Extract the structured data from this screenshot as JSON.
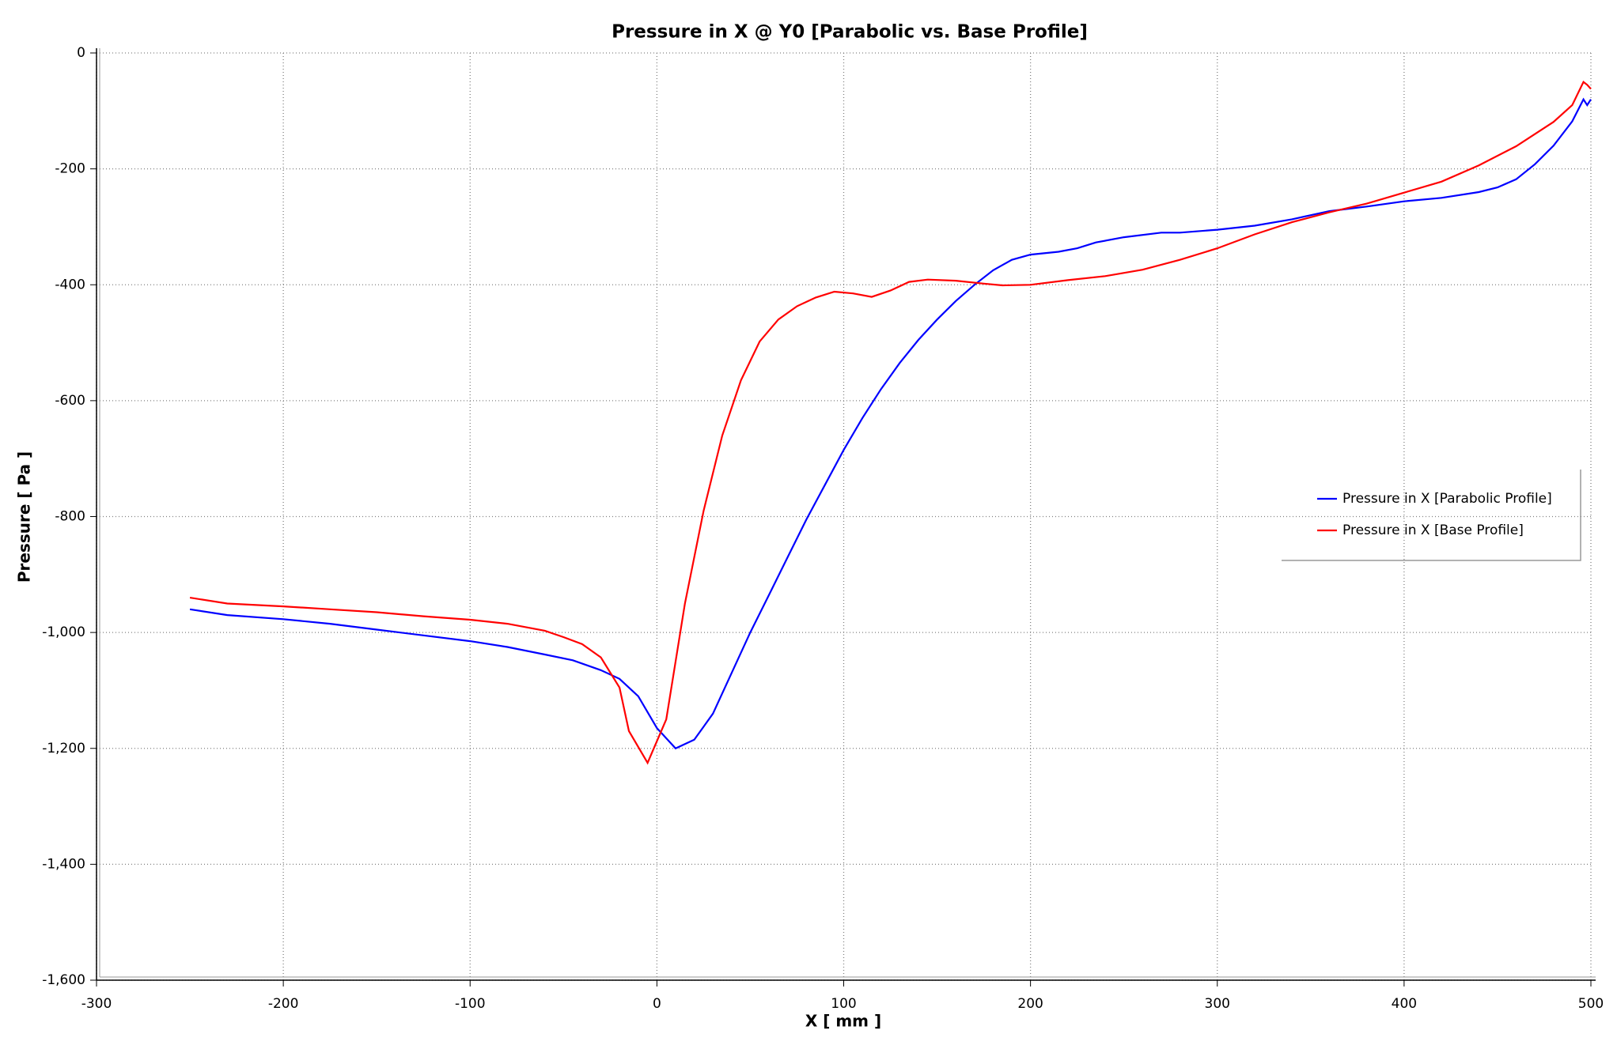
{
  "chart_data": {
    "type": "line",
    "title": "Pressure in X @ Y0 [Parabolic vs. Base Profile]",
    "xlabel": "X [ mm ]",
    "ylabel": "Pressure [ Pa ]",
    "xlim": [
      -300,
      500
    ],
    "xticks": [
      -300,
      -200,
      -100,
      0,
      100,
      200,
      300,
      400,
      500
    ],
    "ylim": [
      -1600,
      0
    ],
    "yticks": [
      {
        "value": -1600,
        "label": "-1,600"
      },
      {
        "value": -1400,
        "label": "-1,400"
      },
      {
        "value": -1200,
        "label": "-1,200"
      },
      {
        "value": -1000,
        "label": "-1,000"
      },
      -800,
      -600,
      -400,
      -200,
      0
    ],
    "grid": true,
    "legend": "right",
    "series": [
      {
        "name": "Pressure in X [Parabolic Profile]",
        "color": "#0000ff",
        "x": [
          -250,
          -230,
          -200,
          -175,
          -150,
          -125,
          -100,
          -80,
          -60,
          -45,
          -30,
          -20,
          -10,
          0,
          10,
          20,
          30,
          40,
          50,
          60,
          70,
          80,
          90,
          100,
          110,
          120,
          130,
          140,
          150,
          160,
          170,
          180,
          190,
          200,
          215,
          225,
          235,
          250,
          270,
          280,
          300,
          320,
          340,
          360,
          380,
          400,
          420,
          440,
          450,
          460,
          470,
          480,
          490,
          496,
          498,
          500
        ],
        "values": [
          -960,
          -970,
          -977,
          -985,
          -995,
          -1005,
          -1015,
          -1025,
          -1038,
          -1048,
          -1065,
          -1080,
          -1110,
          -1165,
          -1200,
          -1185,
          -1140,
          -1070,
          -1000,
          -935,
          -870,
          -805,
          -745,
          -685,
          -630,
          -580,
          -535,
          -495,
          -460,
          -428,
          -400,
          -375,
          -357,
          -348,
          -343,
          -337,
          -327,
          -318,
          -310,
          -310,
          -305,
          -298,
          -287,
          -273,
          -265,
          -256,
          -250,
          -240,
          -232,
          -218,
          -192,
          -160,
          -118,
          -80,
          -90,
          -80
        ]
      },
      {
        "name": "Pressure in X [Base Profile]",
        "color": "#ff0000",
        "x": [
          -250,
          -230,
          -200,
          -175,
          -150,
          -125,
          -100,
          -80,
          -60,
          -50,
          -40,
          -30,
          -20,
          -15,
          -5,
          5,
          15,
          25,
          35,
          45,
          55,
          65,
          75,
          85,
          95,
          105,
          115,
          125,
          135,
          145,
          160,
          175,
          185,
          200,
          220,
          240,
          260,
          280,
          300,
          320,
          340,
          360,
          380,
          400,
          420,
          440,
          460,
          480,
          490,
          496,
          498,
          500
        ],
        "values": [
          -940,
          -950,
          -955,
          -960,
          -965,
          -972,
          -978,
          -985,
          -997,
          -1008,
          -1020,
          -1043,
          -1095,
          -1170,
          -1225,
          -1150,
          -950,
          -790,
          -660,
          -565,
          -498,
          -460,
          -437,
          -422,
          -412,
          -415,
          -421,
          -410,
          -395,
          -391,
          -393,
          -398,
          -401,
          -400,
          -392,
          -385,
          -374,
          -357,
          -337,
          -313,
          -292,
          -275,
          -260,
          -241,
          -222,
          -194,
          -161,
          -119,
          -90,
          -50,
          -55,
          -62
        ]
      }
    ]
  }
}
